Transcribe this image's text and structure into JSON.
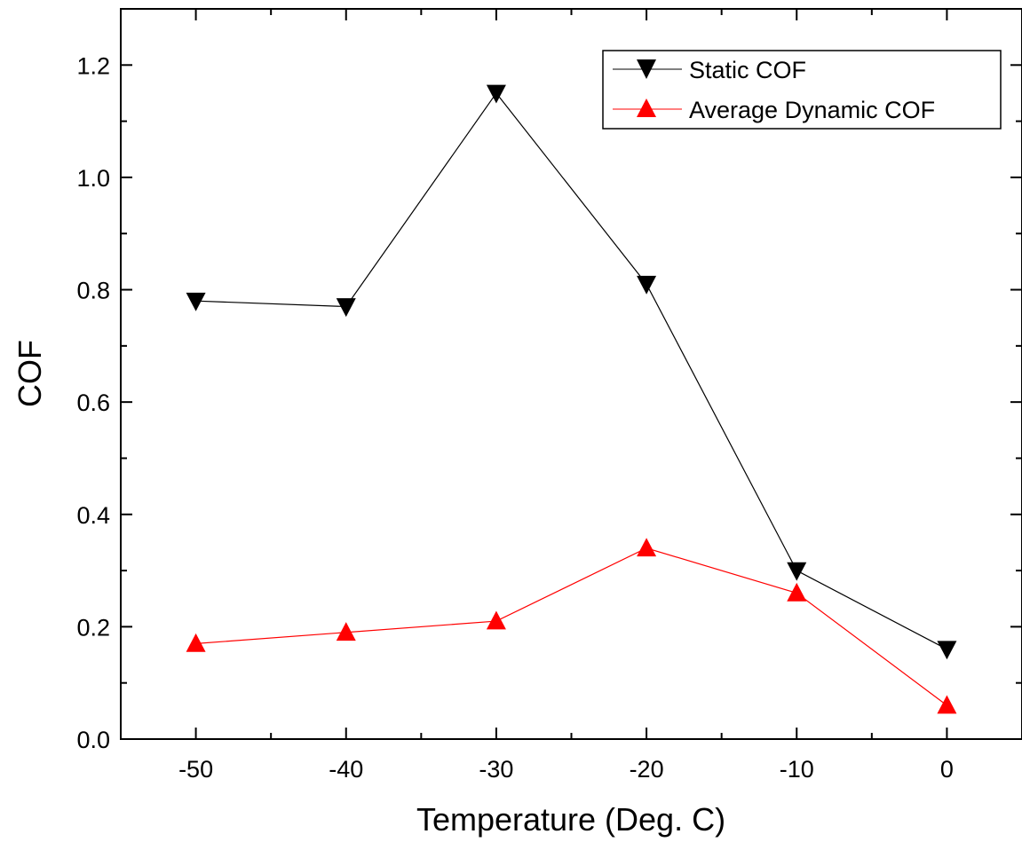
{
  "chart_data": {
    "type": "line",
    "title": "",
    "xlabel": "Temperature (Deg. C)",
    "ylabel": "COF",
    "x": [
      -50,
      -40,
      -30,
      -20,
      -10,
      0
    ],
    "xlim": [
      -55,
      5
    ],
    "ylim": [
      0,
      1.3
    ],
    "xticks": [
      -50,
      -40,
      -30,
      -20,
      -10,
      0
    ],
    "xtick_labels": [
      "-50",
      "-40",
      "-30",
      "-20",
      "-10",
      "0"
    ],
    "yticks": [
      0,
      0.2,
      0.4,
      0.6,
      0.8,
      1.0,
      1.2
    ],
    "ytick_labels": [
      "0.0",
      "0.2",
      "0.4",
      "0.6",
      "0.8",
      "1.0",
      "1.2"
    ],
    "grid": false,
    "legend_position": "top-right",
    "series": [
      {
        "name": "Static COF",
        "values": [
          0.78,
          0.77,
          1.15,
          0.81,
          0.3,
          0.16
        ],
        "color": "#000000",
        "marker": "triangle-down"
      },
      {
        "name": "Average Dynamic COF",
        "values": [
          0.17,
          0.19,
          0.21,
          0.34,
          0.26,
          0.06
        ],
        "color": "#ff0000",
        "marker": "triangle-up"
      }
    ]
  }
}
